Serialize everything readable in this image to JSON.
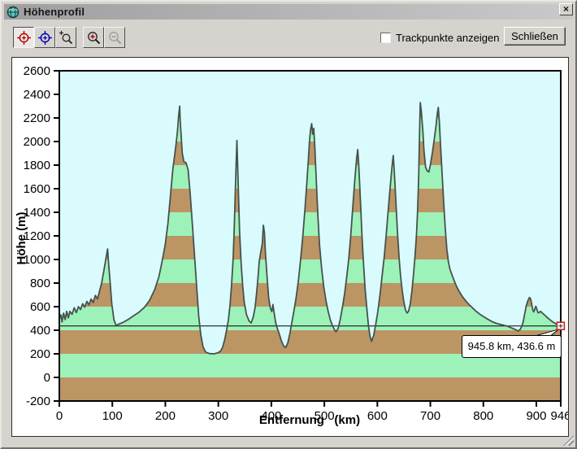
{
  "window": {
    "title": "Höhenprofil",
    "close_icon": "×"
  },
  "toolbar": {
    "buttons": [
      {
        "icon": "red-crosshair-target",
        "active": true
      },
      {
        "icon": "blue-crosshair-target",
        "active": false
      },
      {
        "icon": "zoom-selection-magnifier",
        "active": false
      },
      {
        "icon": "zoom-in-magnifier",
        "active": false
      },
      {
        "icon": "zoom-out-magnifier",
        "active": false,
        "disabled": true
      }
    ]
  },
  "controls": {
    "trackpoints_checkbox": {
      "label": "Trackpunkte anzeigen",
      "checked": false
    },
    "close_button_label": "Schließen"
  },
  "chart_data": {
    "type": "area",
    "xlabel": "Entfernung   (km)",
    "ylabel": "Höhe (m)",
    "xlim": [
      0,
      946
    ],
    "ylim": [
      -200,
      2600
    ],
    "x_ticks": [
      0,
      100,
      200,
      300,
      400,
      500,
      600,
      700,
      800,
      900,
      946
    ],
    "y_ticks": [
      -200,
      0,
      200,
      400,
      600,
      800,
      1000,
      1200,
      1400,
      1600,
      1800,
      2000,
      2200,
      2400,
      2600
    ],
    "grid": false,
    "band_size_m": 200,
    "band_colors": {
      "lower_band": "#bc9565",
      "upper_band": "#9df2ba"
    },
    "plot_bg": "#d9fbfd",
    "line_color": "#46524b",
    "cursor": {
      "x_km": 945.8,
      "y_m": 436.6,
      "label": "945.8 km, 436.6 m",
      "marker_color": "#cc2222"
    },
    "profile": [
      [
        0,
        500
      ],
      [
        3,
        530
      ],
      [
        5,
        470
      ],
      [
        8,
        545
      ],
      [
        11,
        490
      ],
      [
        14,
        560
      ],
      [
        17,
        505
      ],
      [
        20,
        560
      ],
      [
        24,
        535
      ],
      [
        28,
        590
      ],
      [
        32,
        550
      ],
      [
        36,
        600
      ],
      [
        40,
        575
      ],
      [
        44,
        625
      ],
      [
        48,
        595
      ],
      [
        52,
        645
      ],
      [
        56,
        615
      ],
      [
        60,
        665
      ],
      [
        64,
        635
      ],
      [
        68,
        695
      ],
      [
        72,
        665
      ],
      [
        76,
        735
      ],
      [
        80,
        805
      ],
      [
        84,
        905
      ],
      [
        88,
        1010
      ],
      [
        91,
        1090
      ],
      [
        93,
        960
      ],
      [
        96,
        800
      ],
      [
        99,
        620
      ],
      [
        103,
        490
      ],
      [
        107,
        440
      ],
      [
        112,
        452
      ],
      [
        120,
        466
      ],
      [
        130,
        492
      ],
      [
        140,
        522
      ],
      [
        150,
        552
      ],
      [
        160,
        592
      ],
      [
        170,
        652
      ],
      [
        180,
        745
      ],
      [
        188,
        855
      ],
      [
        194,
        985
      ],
      [
        200,
        1130
      ],
      [
        205,
        1310
      ],
      [
        210,
        1560
      ],
      [
        214,
        1760
      ],
      [
        217,
        1860
      ],
      [
        220,
        1970
      ],
      [
        223,
        2090
      ],
      [
        225,
        2210
      ],
      [
        227,
        2300
      ],
      [
        228,
        2180
      ],
      [
        230,
        2040
      ],
      [
        232,
        1900
      ],
      [
        235,
        1830
      ],
      [
        239,
        1820
      ],
      [
        243,
        1760
      ],
      [
        247,
        1550
      ],
      [
        251,
        1300
      ],
      [
        255,
        1040
      ],
      [
        259,
        780
      ],
      [
        263,
        520
      ],
      [
        267,
        360
      ],
      [
        271,
        260
      ],
      [
        276,
        215
      ],
      [
        283,
        202
      ],
      [
        292,
        200
      ],
      [
        299,
        208
      ],
      [
        304,
        222
      ],
      [
        308,
        255
      ],
      [
        312,
        320
      ],
      [
        316,
        410
      ],
      [
        319,
        490
      ],
      [
        322,
        610
      ],
      [
        325,
        790
      ],
      [
        328,
        1010
      ],
      [
        330,
        1260
      ],
      [
        332,
        1560
      ],
      [
        334,
        1860
      ],
      [
        335,
        2010
      ],
      [
        336,
        1870
      ],
      [
        338,
        1540
      ],
      [
        340,
        1240
      ],
      [
        343,
        970
      ],
      [
        346,
        770
      ],
      [
        349,
        635
      ],
      [
        353,
        535
      ],
      [
        358,
        478
      ],
      [
        362,
        462
      ],
      [
        366,
        515
      ],
      [
        369,
        585
      ],
      [
        372,
        705
      ],
      [
        375,
        855
      ],
      [
        377,
        975
      ],
      [
        379,
        1035
      ],
      [
        381,
        1085
      ],
      [
        383,
        1135
      ],
      [
        385,
        1290
      ],
      [
        387,
        1225
      ],
      [
        389,
        1045
      ],
      [
        392,
        845
      ],
      [
        395,
        675
      ],
      [
        398,
        588
      ],
      [
        401,
        558
      ],
      [
        403,
        618
      ],
      [
        405,
        558
      ],
      [
        408,
        468
      ],
      [
        411,
        418
      ],
      [
        415,
        368
      ],
      [
        419,
        308
      ],
      [
        423,
        268
      ],
      [
        427,
        253
      ],
      [
        431,
        292
      ],
      [
        435,
        372
      ],
      [
        439,
        472
      ],
      [
        443,
        572
      ],
      [
        447,
        682
      ],
      [
        451,
        822
      ],
      [
        455,
        992
      ],
      [
        459,
        1182
      ],
      [
        463,
        1402
      ],
      [
        467,
        1652
      ],
      [
        470,
        1852
      ],
      [
        472,
        2002
      ],
      [
        474,
        2102
      ],
      [
        476,
        2152
      ],
      [
        478,
        2062
      ],
      [
        480,
        2112
      ],
      [
        482,
        1952
      ],
      [
        485,
        1652
      ],
      [
        488,
        1352
      ],
      [
        491,
        1122
      ],
      [
        495,
        922
      ],
      [
        499,
        762
      ],
      [
        503,
        652
      ],
      [
        507,
        562
      ],
      [
        511,
        492
      ],
      [
        515,
        442
      ],
      [
        519,
        406
      ],
      [
        522,
        386
      ],
      [
        526,
        416
      ],
      [
        530,
        492
      ],
      [
        534,
        592
      ],
      [
        538,
        702
      ],
      [
        542,
        842
      ],
      [
        546,
        1002
      ],
      [
        550,
        1212
      ],
      [
        554,
        1462
      ],
      [
        558,
        1702
      ],
      [
        561,
        1862
      ],
      [
        563,
        1932
      ],
      [
        565,
        1792
      ],
      [
        568,
        1502
      ],
      [
        571,
        1202
      ],
      [
        574,
        952
      ],
      [
        577,
        752
      ],
      [
        580,
        592
      ],
      [
        583,
        452
      ],
      [
        586,
        352
      ],
      [
        589,
        306
      ],
      [
        593,
        356
      ],
      [
        597,
        452
      ],
      [
        601,
        562
      ],
      [
        605,
        702
      ],
      [
        609,
        862
      ],
      [
        613,
        1022
      ],
      [
        617,
        1222
      ],
      [
        621,
        1442
      ],
      [
        625,
        1652
      ],
      [
        628,
        1802
      ],
      [
        630,
        1882
      ],
      [
        632,
        1742
      ],
      [
        635,
        1482
      ],
      [
        638,
        1232
      ],
      [
        641,
        1012
      ],
      [
        644,
        852
      ],
      [
        647,
        732
      ],
      [
        650,
        642
      ],
      [
        653,
        572
      ],
      [
        656,
        546
      ],
      [
        659,
        562
      ],
      [
        662,
        622
      ],
      [
        665,
        722
      ],
      [
        668,
        862
      ],
      [
        671,
        1022
      ],
      [
        674,
        1222
      ],
      [
        676,
        1422
      ],
      [
        678,
        1702
      ],
      [
        679,
        1952
      ],
      [
        680,
        2152
      ],
      [
        681,
        2330
      ],
      [
        683,
        2252
      ],
      [
        686,
        2082
      ],
      [
        688,
        1922
      ],
      [
        691,
        1782
      ],
      [
        694,
        1752
      ],
      [
        697,
        1742
      ],
      [
        700,
        1802
      ],
      [
        704,
        1912
      ],
      [
        708,
        2042
      ],
      [
        711,
        2142
      ],
      [
        713,
        2232
      ],
      [
        715,
        2290
      ],
      [
        717,
        2172
      ],
      [
        719,
        1992
      ],
      [
        722,
        1742
      ],
      [
        725,
        1492
      ],
      [
        728,
        1272
      ],
      [
        731,
        1092
      ],
      [
        734,
        982
      ],
      [
        737,
        917
      ],
      [
        741,
        867
      ],
      [
        746,
        807
      ],
      [
        751,
        757
      ],
      [
        756,
        717
      ],
      [
        761,
        682
      ],
      [
        767,
        647
      ],
      [
        773,
        617
      ],
      [
        779,
        592
      ],
      [
        786,
        562
      ],
      [
        793,
        537
      ],
      [
        801,
        514
      ],
      [
        809,
        492
      ],
      [
        817,
        472
      ],
      [
        825,
        458
      ],
      [
        833,
        448
      ],
      [
        841,
        440
      ],
      [
        847,
        432
      ],
      [
        853,
        420
      ],
      [
        859,
        408
      ],
      [
        864,
        398
      ],
      [
        866,
        394
      ],
      [
        869,
        404
      ],
      [
        872,
        428
      ],
      [
        875,
        468
      ],
      [
        878,
        538
      ],
      [
        881,
        608
      ],
      [
        884,
        652
      ],
      [
        887,
        678
      ],
      [
        889,
        668
      ],
      [
        891,
        628
      ],
      [
        893,
        578
      ],
      [
        895,
        556
      ],
      [
        897,
        578
      ],
      [
        899,
        603
      ],
      [
        901,
        578
      ],
      [
        903,
        548
      ],
      [
        905,
        550
      ],
      [
        908,
        561
      ],
      [
        911,
        547
      ],
      [
        915,
        531
      ],
      [
        920,
        511
      ],
      [
        925,
        491
      ],
      [
        930,
        473
      ],
      [
        935,
        459
      ],
      [
        940,
        448
      ],
      [
        946,
        437
      ]
    ]
  }
}
